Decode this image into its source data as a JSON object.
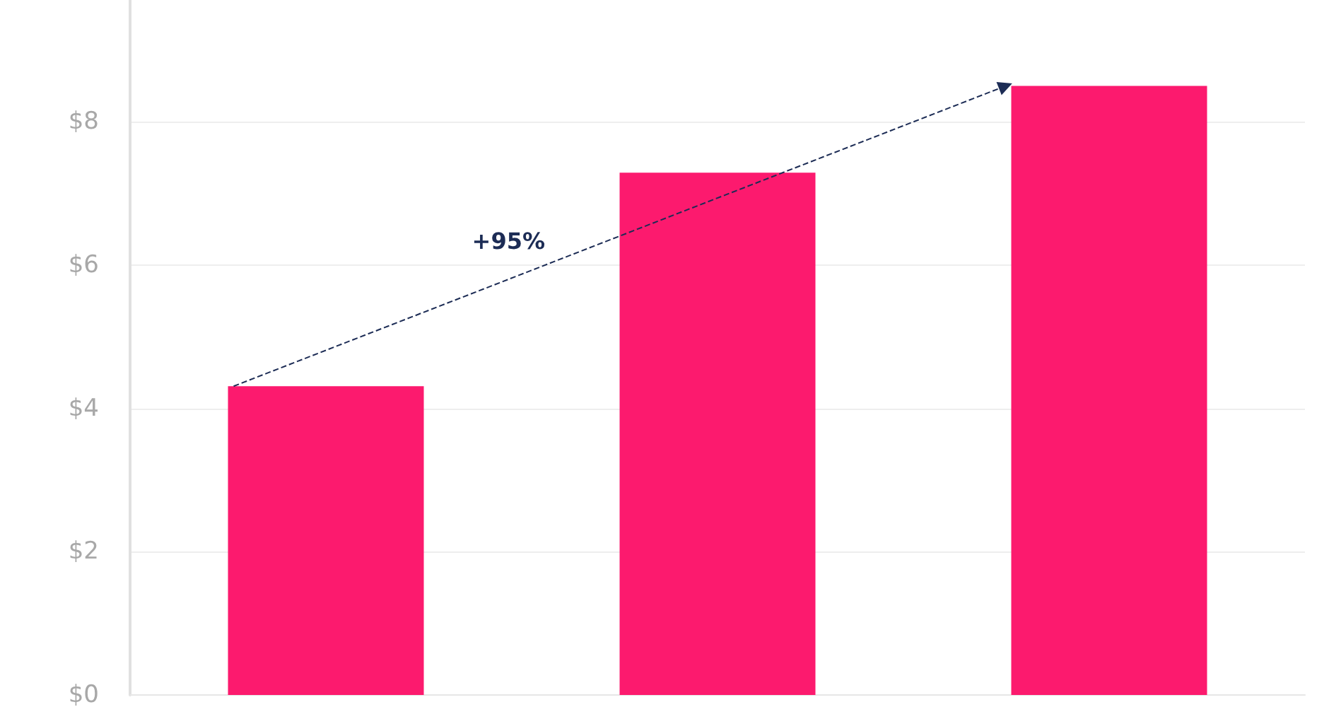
{
  "chart_data": {
    "type": "bar",
    "categories": [
      null,
      null,
      null
    ],
    "values": [
      4.31,
      7.29,
      8.5
    ],
    "color": "#fc1a6e",
    "ylim": [
      0,
      9.7
    ],
    "yticks": [
      {
        "value": 0,
        "label": "$0"
      },
      {
        "value": 2,
        "label": "$2"
      },
      {
        "value": 4,
        "label": "$4"
      },
      {
        "value": 6,
        "label": "$6"
      },
      {
        "value": 8,
        "label": "$8"
      }
    ],
    "grid": "y",
    "annotations": [
      "+95%"
    ]
  }
}
